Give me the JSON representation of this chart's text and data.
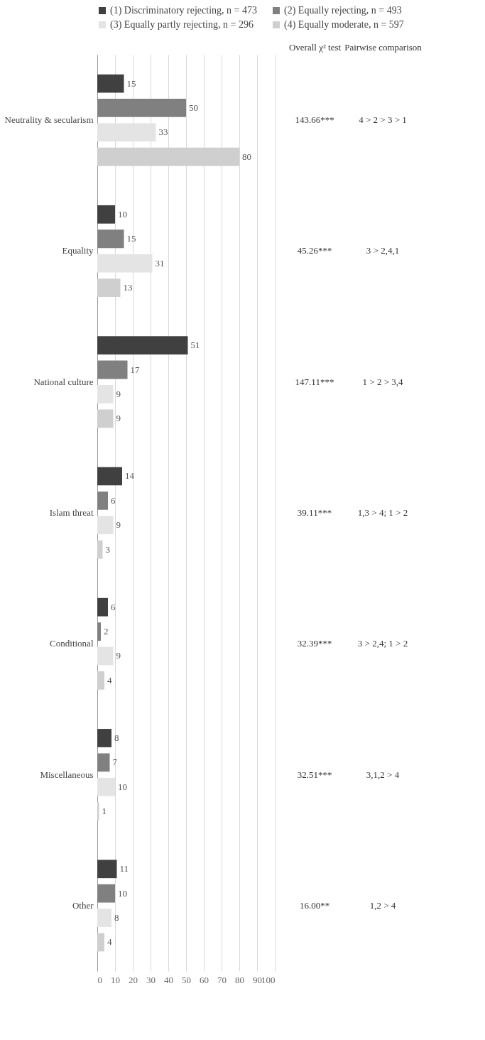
{
  "chart_data": {
    "type": "bar",
    "orientation": "horizontal",
    "categories": [
      "Neutrality & secularism",
      "Equality",
      "National culture",
      "Islam threat",
      "Conditional",
      "Miscellaneous",
      "Other"
    ],
    "series": [
      {
        "name": "(1) Discriminatory rejecting, n = 473",
        "color": "#404040",
        "values": [
          15,
          10,
          51,
          14,
          6,
          8,
          11
        ]
      },
      {
        "name": "(2) Equally rejecting, n = 493",
        "color": "#808080",
        "values": [
          50,
          15,
          17,
          6,
          2,
          7,
          10
        ]
      },
      {
        "name": "(3) Equally partly rejecting, n = 296",
        "color": "#e4e4e4",
        "values": [
          33,
          31,
          9,
          9,
          9,
          10,
          8
        ]
      },
      {
        "name": "(4) Equally moderate, n = 597",
        "color": "#cfcfcf",
        "values": [
          80,
          13,
          9,
          3,
          4,
          1,
          4
        ]
      }
    ],
    "xlim": [
      0,
      100
    ],
    "xticks": [
      0,
      10,
      20,
      30,
      40,
      50,
      60,
      70,
      80,
      90,
      100
    ],
    "grid": "x",
    "legend": "top",
    "data_labels": true,
    "annotations": [
      "Overall χ² test",
      "Pairwise comparison",
      "143.66***",
      "4 > 2 > 3 > 1",
      "45.26***",
      "3 > 2,4,1",
      "147.11***",
      "1 > 2 > 3,4",
      "39.11***",
      "1,3 > 4; 1 > 2",
      "32.39***",
      "3 > 2,4; 1 > 2",
      "32.51***",
      "3,1,2 > 4",
      "16.00**",
      "1,2 > 4"
    ]
  }
}
